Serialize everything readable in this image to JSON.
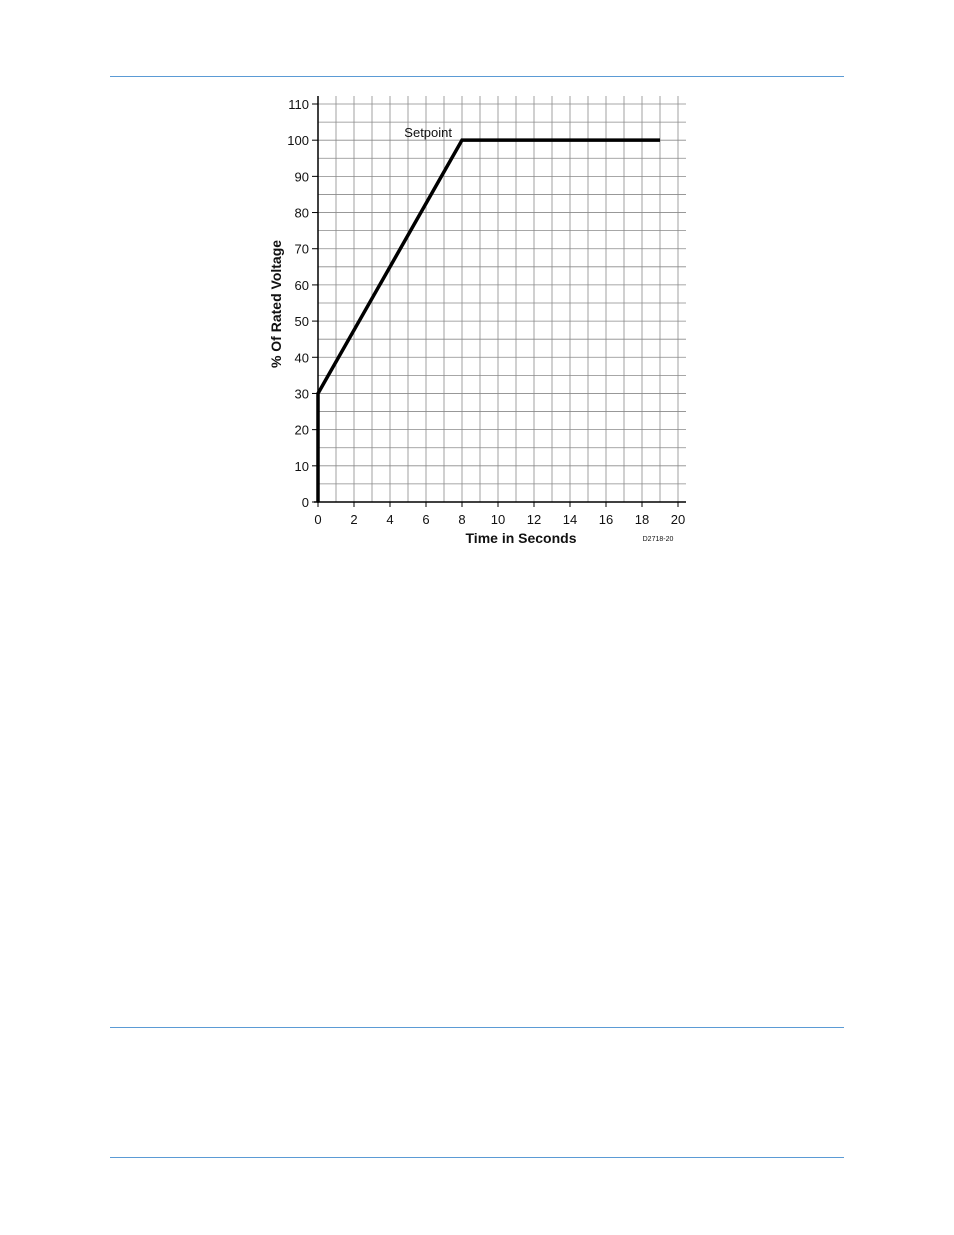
{
  "page": {
    "rule_color": "#5b9bd5"
  },
  "chart_data": {
    "type": "line",
    "xlabel": "Time in Seconds",
    "ylabel": "% Of Rated Voltage",
    "figure_id": "D2718-20",
    "xlim": [
      0,
      20
    ],
    "ylim": [
      0,
      110
    ],
    "x_ticks": [
      "0",
      "2",
      "4",
      "6",
      "8",
      "10",
      "12",
      "14",
      "16",
      "18",
      "20"
    ],
    "y_ticks": [
      "0",
      "10",
      "20",
      "30",
      "40",
      "50",
      "60",
      "70",
      "80",
      "90",
      "100",
      "110"
    ],
    "x_tick_values": [
      0,
      2,
      4,
      6,
      8,
      10,
      12,
      14,
      16,
      18,
      20
    ],
    "y_tick_values": [
      0,
      10,
      20,
      30,
      40,
      50,
      60,
      70,
      80,
      90,
      100,
      110
    ],
    "grid": true,
    "grid_minor_x": 1,
    "grid_minor_y": 5,
    "series": [
      {
        "x": [
          0,
          0,
          8,
          19
        ],
        "y": [
          0,
          30,
          100,
          100
        ],
        "color": "#000000"
      }
    ],
    "annotations": [
      {
        "text": "Setpoint",
        "x": 8,
        "y": 100
      }
    ]
  }
}
